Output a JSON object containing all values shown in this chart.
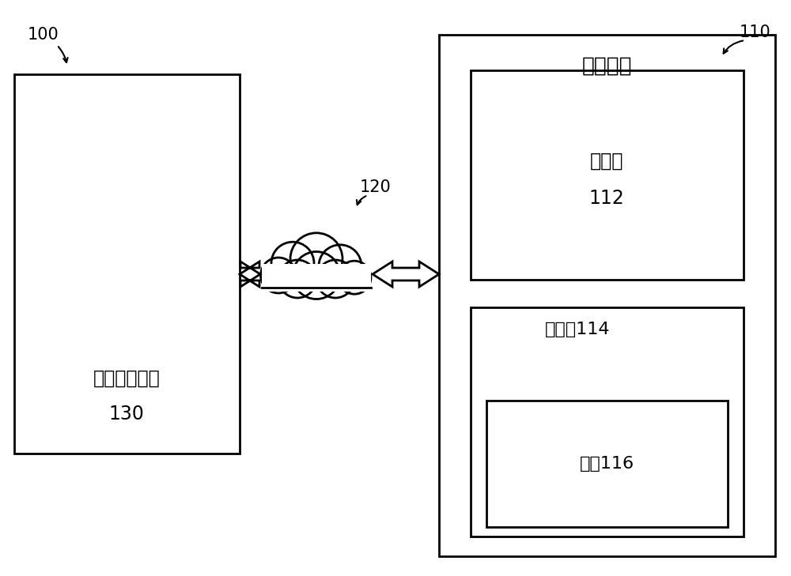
{
  "bg_color": "#ffffff",
  "label_100": "100",
  "label_110": "110",
  "label_120": "120",
  "text_computing_device": "计算设备",
  "text_medical_system": "医疗业务系统\n130",
  "text_processor_line1": "处理器",
  "text_processor_line2": "112",
  "text_memory": "存储器114",
  "text_instruction": "指令116",
  "font_size_label": 15,
  "font_size_box": 17,
  "font_size_title": 19,
  "line_color": "#000000",
  "line_width": 2.0
}
